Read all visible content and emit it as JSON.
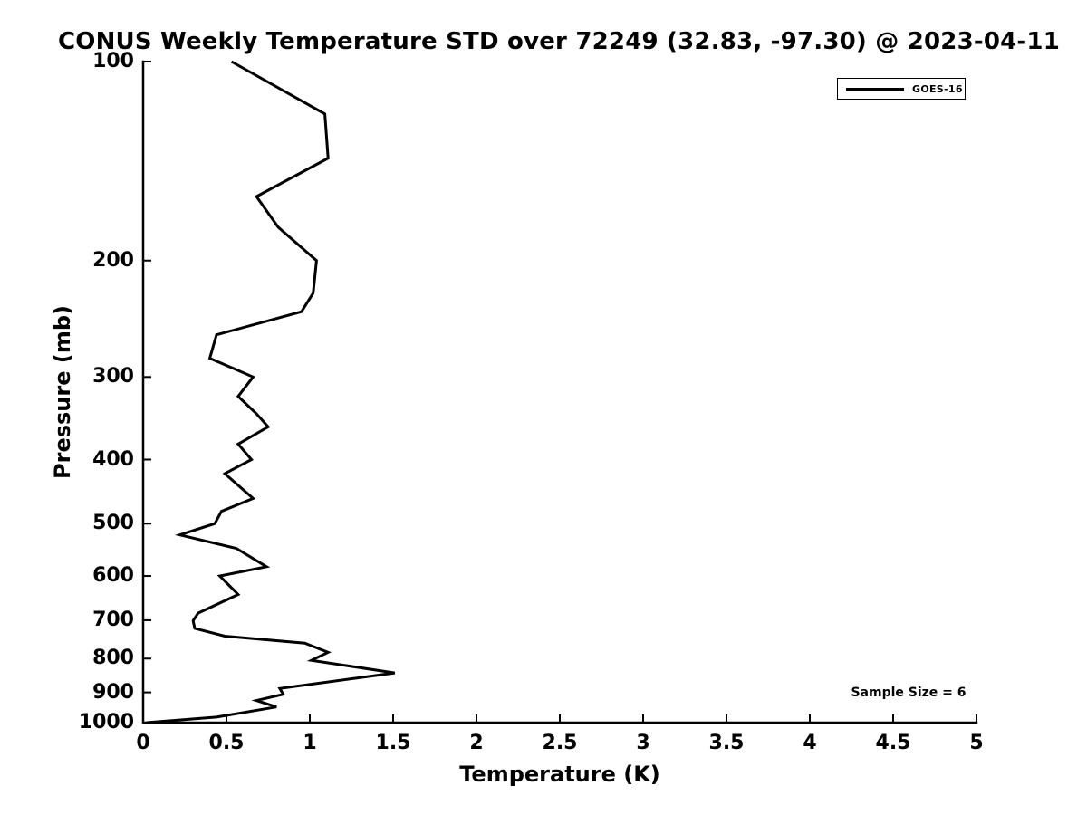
{
  "page": {
    "background": "#ffffff",
    "foreground": "#000000"
  },
  "header": {
    "title": "CONUS Weekly Temperature STD over 72249 (32.83, -97.30) @ 2023-04-11"
  },
  "legend": {
    "label": "GOES-16",
    "line_color": "#000000"
  },
  "annotation": {
    "sample_size_text": "Sample Size = 6"
  },
  "chart_data": {
    "type": "line",
    "title": "CONUS Weekly Temperature STD over 72249 (32.83, -97.30) @ 2023-04-11",
    "xlabel": "Temperature (K)",
    "ylabel": "Pressure (mb)",
    "xlim": [
      0,
      5
    ],
    "ylim": [
      100,
      1000
    ],
    "yscale": "log",
    "y_inverted": true,
    "grid": false,
    "frame": "left-bottom-only",
    "ticks_direction": "in",
    "xticks": [
      0,
      0.5,
      1,
      1.5,
      2,
      2.5,
      3,
      3.5,
      4,
      4.5,
      5
    ],
    "xtick_labels": [
      "0",
      "0.5",
      "1",
      "1.5",
      "2",
      "2.5",
      "3",
      "3.5",
      "4",
      "4.5",
      "5"
    ],
    "yticks": [
      100,
      200,
      300,
      400,
      500,
      600,
      700,
      800,
      900,
      1000
    ],
    "ytick_labels": [
      "100",
      "200",
      "300",
      "400",
      "500",
      "600",
      "700",
      "800",
      "900",
      "1000"
    ],
    "legend_entries": [
      "GOES-16"
    ],
    "legend_position": "top-right",
    "annotations": [
      "Sample Size = 6"
    ],
    "line_color": "#000000",
    "line_width": 3,
    "series": [
      {
        "name": "GOES-16",
        "points_format": [
          "pressure_mb",
          "temperature_std_K"
        ],
        "points": [
          [
            100,
            0.53
          ],
          [
            120,
            1.09
          ],
          [
            140,
            1.11
          ],
          [
            160,
            0.68
          ],
          [
            178,
            0.81
          ],
          [
            200,
            1.04
          ],
          [
            224,
            1.02
          ],
          [
            239,
            0.95
          ],
          [
            259,
            0.44
          ],
          [
            281,
            0.4
          ],
          [
            300,
            0.66
          ],
          [
            321,
            0.57
          ],
          [
            341,
            0.68
          ],
          [
            357,
            0.75
          ],
          [
            379,
            0.57
          ],
          [
            400,
            0.65
          ],
          [
            420,
            0.49
          ],
          [
            458,
            0.66
          ],
          [
            479,
            0.47
          ],
          [
            500,
            0.43
          ],
          [
            520,
            0.22
          ],
          [
            545,
            0.56
          ],
          [
            581,
            0.74
          ],
          [
            600,
            0.46
          ],
          [
            640,
            0.57
          ],
          [
            683,
            0.33
          ],
          [
            701,
            0.3
          ],
          [
            720,
            0.31
          ],
          [
            740,
            0.49
          ],
          [
            758,
            0.97
          ],
          [
            783,
            1.11
          ],
          [
            805,
            1.01
          ],
          [
            841,
            1.51
          ],
          [
            888,
            0.82
          ],
          [
            906,
            0.84
          ],
          [
            926,
            0.68
          ],
          [
            947,
            0.8
          ],
          [
            981,
            0.44
          ],
          [
            1000,
            0.02
          ]
        ]
      }
    ]
  }
}
